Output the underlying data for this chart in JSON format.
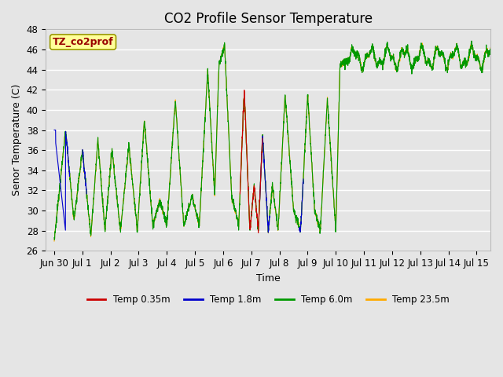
{
  "title": "CO2 Profile Sensor Temperature",
  "xlabel": "Time",
  "ylabel": "Senor Temperature (C)",
  "ylim": [
    26,
    48
  ],
  "xlim": [
    -0.3,
    15.5
  ],
  "x_tick_labels": [
    "Jun 30",
    "Jul 1",
    "Jul 2",
    "Jul 3",
    "Jul 4",
    "Jul 5",
    "Jul 6",
    "Jul 7",
    "Jul 8",
    "Jul 9",
    "Jul 10",
    "Jul 11",
    "Jul 12",
    "Jul 13",
    "Jul 14",
    "Jul 15"
  ],
  "x_tick_positions": [
    0,
    1,
    2,
    3,
    4,
    5,
    6,
    7,
    8,
    9,
    10,
    11,
    12,
    13,
    14,
    15
  ],
  "ytick_positions": [
    26,
    28,
    30,
    32,
    34,
    36,
    38,
    40,
    42,
    44,
    46,
    48
  ],
  "colors": {
    "temp035": "#cc0000",
    "temp18": "#0000cc",
    "temp60": "#009900",
    "temp235": "#ffaa00"
  },
  "legend_labels": [
    "Temp 0.35m",
    "Temp 1.8m",
    "Temp 6.0m",
    "Temp 23.5m"
  ],
  "annotation_text": "TZ_co2prof",
  "annotation_color": "#990000",
  "annotation_bg": "#ffff99",
  "annotation_border": "#999900",
  "bg_color": "#e5e5e5",
  "grid_color": "#ffffff",
  "title_fontsize": 12,
  "axis_fontsize": 9,
  "tick_fontsize": 8.5,
  "figsize": [
    6.4,
    4.8
  ],
  "dpi": 100
}
